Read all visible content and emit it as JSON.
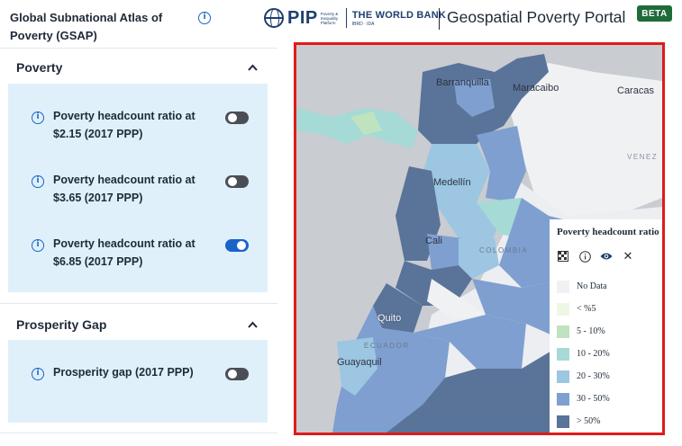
{
  "sidebar": {
    "title": "Global Subnational Atlas of Poverty (GSAP)",
    "sections": [
      {
        "label": "Poverty",
        "expanded": true,
        "layers": [
          {
            "label": "Poverty headcount ratio at $2.15 (2017 PPP)",
            "enabled": false
          },
          {
            "label": "Poverty headcount ratio at $3.65 (2017 PPP)",
            "enabled": false
          },
          {
            "label": "Poverty headcount ratio at $6.85 (2017 PPP)",
            "enabled": true
          }
        ]
      },
      {
        "label": "Prosperity Gap",
        "expanded": true,
        "layers": [
          {
            "label": "Prosperity gap (2017 PPP)",
            "enabled": false
          }
        ]
      }
    ]
  },
  "header": {
    "logo_pip": "PIP",
    "logo_pip_sub": "Poverty & Inequality Platform",
    "logo_wb": "THE WORLD BANK",
    "logo_wb_sub": "IBRD · IDA",
    "portal_title": "Geospatial Poverty Portal",
    "badge": "BETA"
  },
  "map": {
    "labels": {
      "barranquilla": "Barranquilla",
      "maracaibo": "Maracaibo",
      "caracas": "Caracas",
      "venezuela": "VENEZ",
      "medellin": "Medellín",
      "cali": "Cali",
      "colombia": "COLOMBIA",
      "quito": "Quito",
      "ecuador": "ECUADOR",
      "guayaquil": "Guayaquil"
    },
    "legend": {
      "title": "Poverty headcount ratio",
      "tools": [
        "checkerboard-icon",
        "info-icon",
        "eye-icon",
        "close-icon"
      ],
      "close_glyph": "✕",
      "items": [
        {
          "label": "No Data",
          "color": "#f0f1f3"
        },
        {
          "label": "< %5",
          "color": "#eef7e4"
        },
        {
          "label": "5 - 10%",
          "color": "#bfe3bf"
        },
        {
          "label": "10 - 20%",
          "color": "#a6dad6"
        },
        {
          "label": "20 - 30%",
          "color": "#9cc6e2"
        },
        {
          "label": "30 - 50%",
          "color": "#7f9fd0"
        },
        {
          "label": "> 50%",
          "color": "#5a7399"
        }
      ]
    }
  }
}
